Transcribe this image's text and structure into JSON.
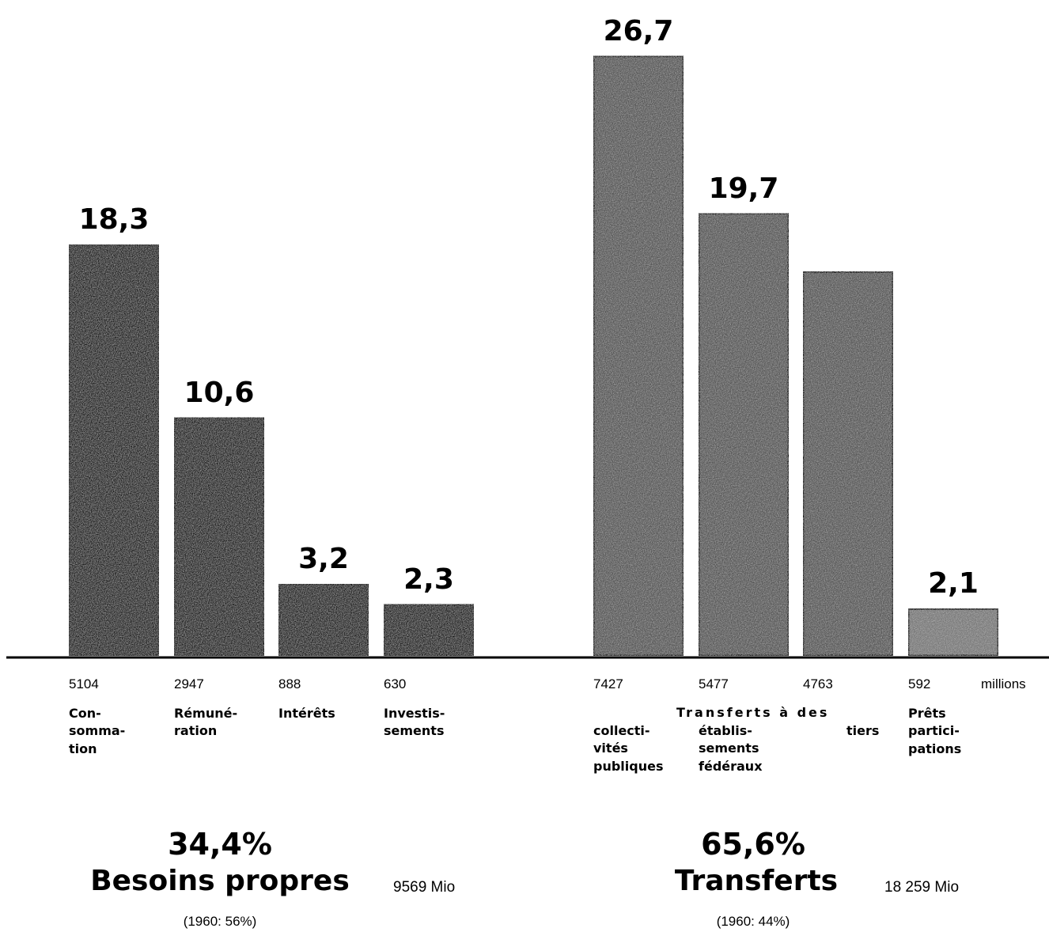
{
  "chart_data": {
    "type": "bar",
    "unit_label": "millions",
    "bars": [
      {
        "percent": "18,3",
        "amount": "5104",
        "label_lines": [
          "Con-",
          "somma-",
          "tion"
        ],
        "value": 18.3,
        "group": "Besoins propres"
      },
      {
        "percent": "10,6",
        "amount": "2947",
        "label_lines": [
          "Rémuné-",
          "ration"
        ],
        "value": 10.6,
        "group": "Besoins propres"
      },
      {
        "percent": "3,2",
        "amount": "888",
        "label_lines": [
          "Intérêts"
        ],
        "value": 3.2,
        "group": "Besoins propres"
      },
      {
        "percent": "2,3",
        "amount": "630",
        "label_lines": [
          "Investis-",
          "sements"
        ],
        "value": 2.3,
        "group": "Besoins propres"
      },
      {
        "percent": "26,7",
        "amount": "7427",
        "label_lines": [
          "collecti-",
          "vités",
          "publiques"
        ],
        "value": 26.7,
        "group": "Transferts"
      },
      {
        "percent": "19,7",
        "amount": "5477",
        "label_lines": [
          "établis-",
          "sements",
          "fédéraux"
        ],
        "value": 19.7,
        "group": "Transferts"
      },
      {
        "percent": "",
        "amount": "4763",
        "label_lines": [
          "tiers"
        ],
        "value": 17.1,
        "group": "Transferts"
      },
      {
        "percent": "2,1",
        "amount": "592",
        "label_lines": [
          "Prêts",
          "partici-",
          "pations"
        ],
        "value": 2.1,
        "group": "Prêts"
      }
    ],
    "shared_label": "Transferts à des",
    "groups": [
      {
        "percent": "34,4%",
        "name": "Besoins propres",
        "total": "9569 Mio",
        "ref": "(1960: 56%)"
      },
      {
        "percent": "65,6%",
        "name": "Transferts",
        "total": "18 259 Mio",
        "ref": "(1960: 44%)"
      }
    ],
    "colors": {
      "dark": "#1a1a1a",
      "medium": "#555555",
      "light": "#777777"
    }
  }
}
